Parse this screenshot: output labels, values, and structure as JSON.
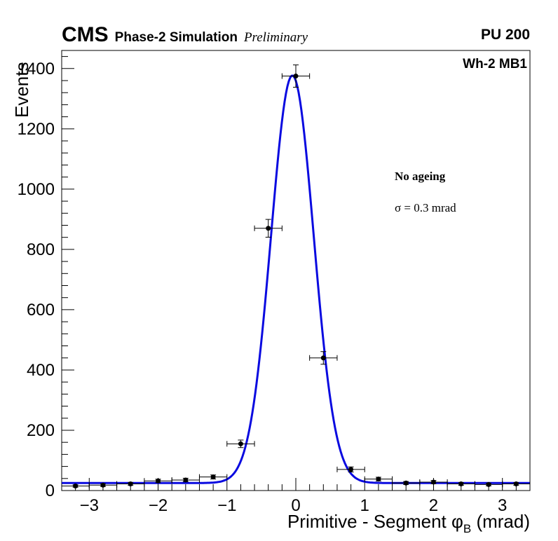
{
  "header": {
    "experiment": "CMS",
    "subtitle": "Phase-2 Simulation",
    "preliminary": "Preliminary",
    "pileup": "PU 200"
  },
  "labels": {
    "region": "Wh-2 MB1",
    "ageing": "No ageing",
    "sigma": "σ = 0.3 mrad"
  },
  "axes": {
    "ylabel": "Events",
    "xlabel_prefix": "Primitive - Segment ",
    "xlabel_symbol": "φ",
    "xlabel_subscript": "B",
    "xlabel_suffix": " (mrad)"
  },
  "chart_data": {
    "type": "scatter",
    "title": "CMS Phase-2 Simulation Preliminary, PU 200, Wh-2 MB1, No ageing",
    "xlabel": "Primitive - Segment phi_B (mrad)",
    "ylabel": "Events",
    "xlim": [
      -3.4,
      3.4
    ],
    "ylim": [
      0,
      1460
    ],
    "xticks": [
      -3,
      -2,
      -1,
      0,
      1,
      2,
      3
    ],
    "yticks": [
      0,
      200,
      400,
      600,
      800,
      1000,
      1200,
      1400
    ],
    "x_minor_step": 0.2,
    "y_minor_step": 40,
    "bin_half_width": 0.2,
    "grid": false,
    "legend_position": "none",
    "points": {
      "x": [
        -3.2,
        -2.8,
        -2.4,
        -2.0,
        -1.6,
        -1.2,
        -0.8,
        -0.4,
        0.0,
        0.4,
        0.8,
        1.2,
        1.6,
        2.0,
        2.4,
        2.8,
        3.2
      ],
      "y": [
        15,
        18,
        22,
        32,
        35,
        45,
        155,
        870,
        1375,
        440,
        70,
        38,
        25,
        28,
        22,
        20,
        22
      ],
      "yerr": [
        4,
        4.5,
        5,
        5.7,
        5.9,
        6.7,
        12.5,
        29.5,
        37,
        21,
        8.4,
        6.2,
        5,
        5.3,
        4.7,
        4.5,
        4.7
      ]
    },
    "fit": {
      "model": "gaussian_plus_constant",
      "amplitude": 1352,
      "mean": -0.05,
      "sigma": 0.31,
      "constant": 25,
      "sigma_label": "σ = 0.3 mrad",
      "color": "#0a0ae0",
      "line_width": 3
    },
    "marker": {
      "color": "#000000",
      "radius": 3.5
    }
  }
}
